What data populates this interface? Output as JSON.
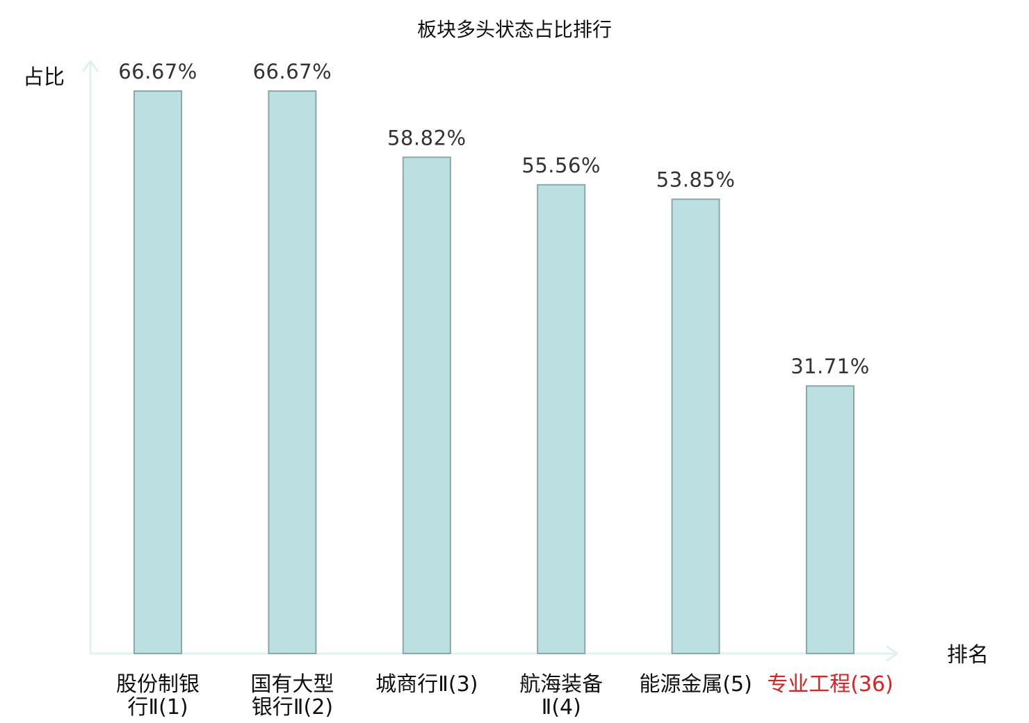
{
  "chart_data": {
    "type": "bar",
    "title": "板块多头状态占比排行",
    "ylabel": "占比",
    "xlabel": "排名",
    "ylim": [
      0,
      70
    ],
    "grid": false,
    "value_suffix": "%",
    "categories": [
      [
        "股份制银",
        "行Ⅱ(1)"
      ],
      [
        "国有大型",
        "银行Ⅱ(2)"
      ],
      [
        "城商行Ⅱ(3)"
      ],
      [
        "航海装备",
        "Ⅱ(4)"
      ],
      [
        "能源金属(5)"
      ],
      [
        "专业工程(36)"
      ]
    ],
    "values": [
      66.67,
      66.67,
      58.82,
      55.56,
      53.85,
      31.71
    ],
    "value_labels": [
      "66.67%",
      "66.67%",
      "58.82%",
      "55.56%",
      "53.85%",
      "31.71%"
    ],
    "label_colors": [
      "#111111",
      "#111111",
      "#111111",
      "#111111",
      "#111111",
      "#e02020"
    ],
    "bar_color": "#bce0e2",
    "bar_border_color": "#8aa8aa",
    "axis_color": "#dff2ef"
  }
}
